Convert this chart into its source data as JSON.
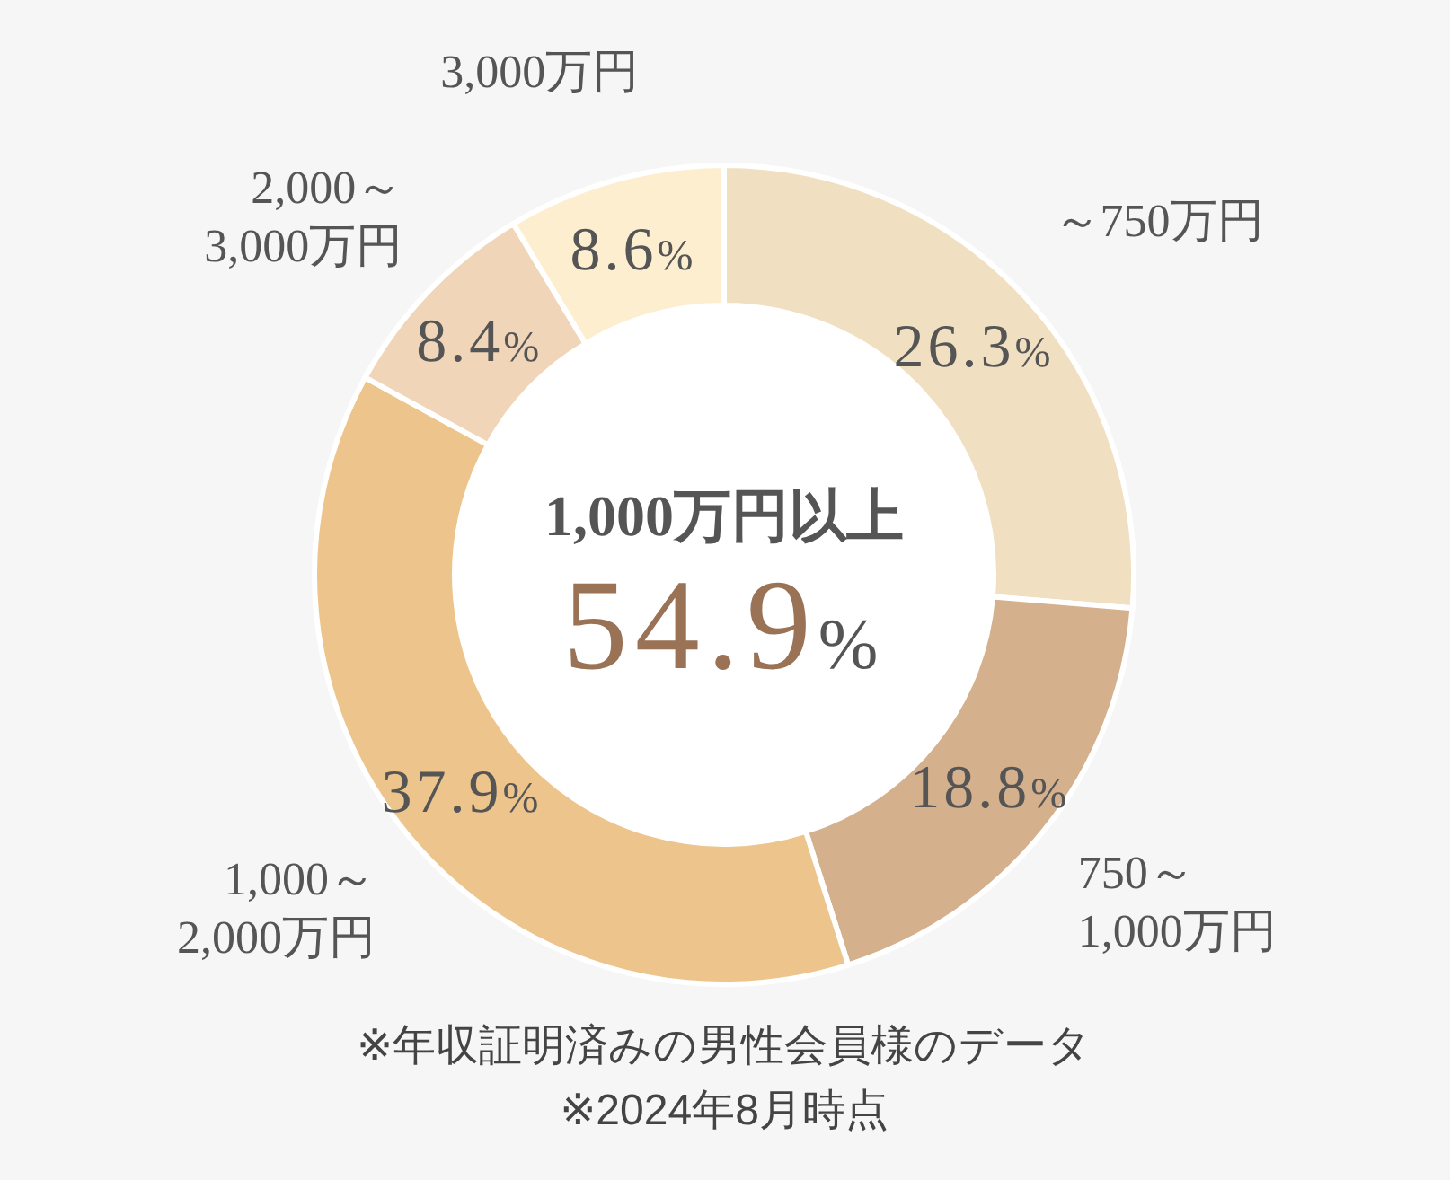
{
  "chart_data": {
    "type": "donut",
    "categories": [
      "～750万円",
      "750～\n1,000万円",
      "1,000～\n2,000万円",
      "2,000～\n3,000万円",
      "3,000万円"
    ],
    "values": [
      26.3,
      18.8,
      37.9,
      8.4,
      8.6
    ],
    "colors": [
      "#f0dfc0",
      "#d4b08c",
      "#ecc48c",
      "#f0d5b8",
      "#fdeecf"
    ],
    "value_labels": [
      "26.3%",
      "18.8%",
      "37.9%",
      "8.4%",
      "8.6%"
    ],
    "annotations": [
      "1,000万円以上",
      "54.9%",
      "※年収証明済みの男性会員様のデータ",
      "※2024年8月時点"
    ]
  }
}
